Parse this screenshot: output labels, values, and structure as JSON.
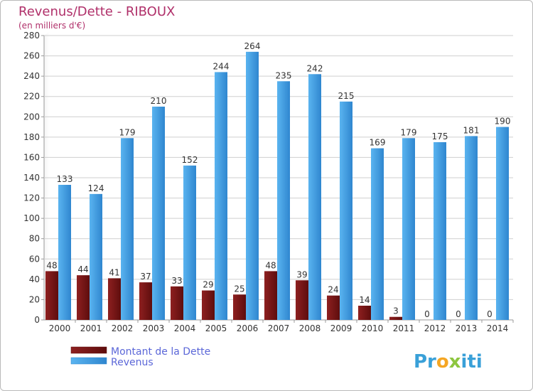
{
  "chart_data": {
    "type": "bar",
    "title": "Revenus/Dette - RIBOUX",
    "subtitle": "(en milliers d'€)",
    "categories": [
      "2000",
      "2001",
      "2002",
      "2003",
      "2004",
      "2005",
      "2006",
      "2007",
      "2008",
      "2009",
      "2010",
      "2011",
      "2012",
      "2013",
      "2014"
    ],
    "series": [
      {
        "name": "Montant de la Dette",
        "color": "#7a1515",
        "values": [
          48,
          44,
          41,
          37,
          33,
          29,
          25,
          48,
          39,
          24,
          14,
          3,
          0,
          0,
          0
        ]
      },
      {
        "name": "Revenus",
        "color": "#3f9be0",
        "values": [
          133,
          124,
          179,
          210,
          152,
          244,
          264,
          235,
          242,
          215,
          169,
          179,
          175,
          181,
          190
        ]
      }
    ],
    "ylim": [
      0,
      280
    ],
    "ytick_step": 20,
    "grid": true,
    "legend": "bottom-left"
  },
  "branding": {
    "logo_parts": [
      "Pr",
      "o",
      "x",
      "iti"
    ],
    "logo_colors": [
      "#39a0d8",
      "#f5a623",
      "#8dc63f",
      "#39a0d8"
    ]
  }
}
